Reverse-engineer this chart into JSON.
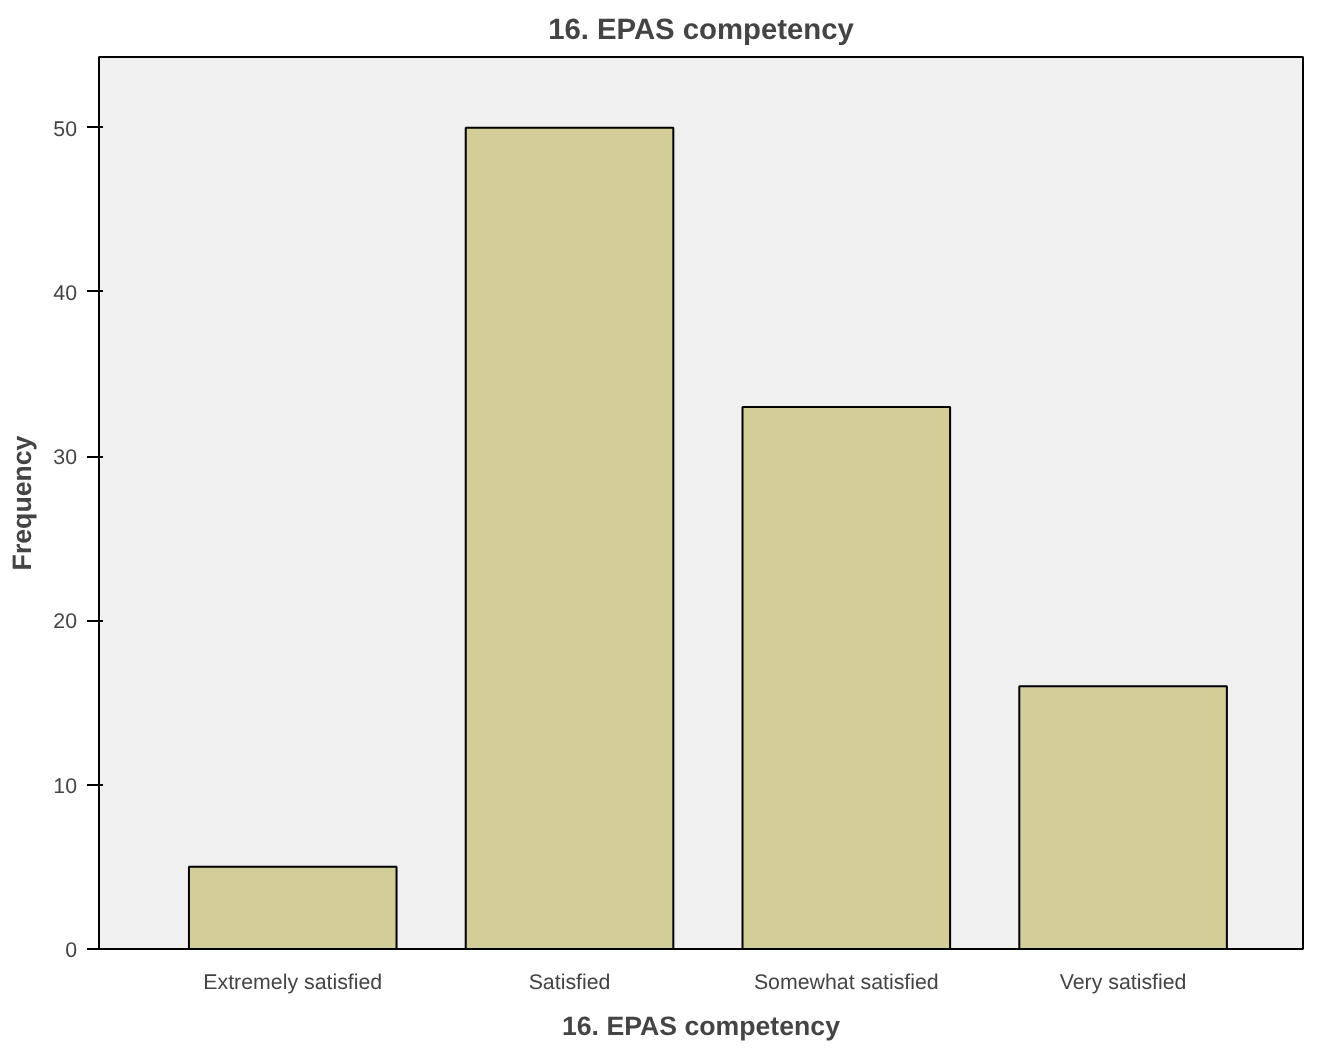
{
  "chart_data": {
    "type": "bar",
    "title": "16. EPAS competency",
    "xlabel": "16. EPAS competency",
    "ylabel": "Frequency",
    "categories": [
      "Extremely satisfied",
      "Satisfied",
      "Somewhat satisfied",
      "Very satisfied"
    ],
    "values": [
      5,
      50,
      33,
      16
    ],
    "color": "#d3ce98",
    "ylim": [
      0,
      54.3
    ],
    "yticks": [
      0,
      10,
      20,
      30,
      40,
      50
    ],
    "grid": false
  }
}
